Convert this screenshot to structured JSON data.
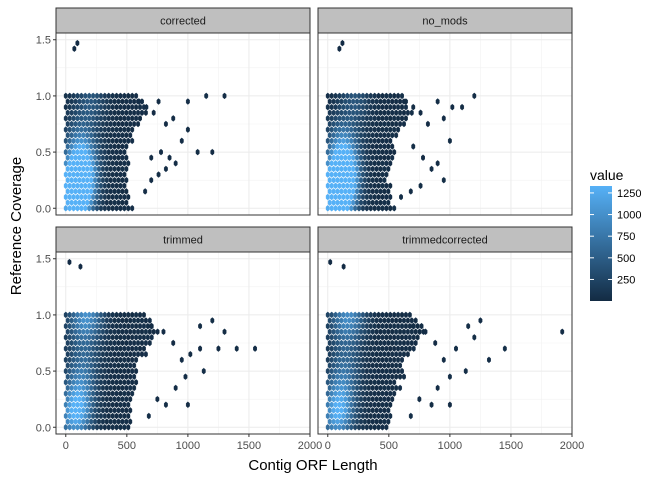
{
  "chart_data": {
    "type": "heatmap",
    "subtype": "hexbin",
    "facet_layout": "2x2",
    "xlabel": "Contig ORF Length",
    "ylabel": "Reference Coverage",
    "xlim": [
      -80,
      2000
    ],
    "ylim": [
      -0.06,
      1.56
    ],
    "x_ticks": [
      0,
      500,
      1000,
      1500,
      2000
    ],
    "y_ticks": [
      0.0,
      0.5,
      1.0,
      1.5
    ],
    "x_tick_labels": [
      "0",
      "500",
      "1000",
      "1500",
      "2000"
    ],
    "y_tick_labels": [
      "0.0",
      "0.5",
      "1.0",
      "1.5"
    ],
    "grid": true,
    "legend": {
      "title": "value",
      "placement": "right",
      "value_range": [
        1,
        1330
      ],
      "breaks": [
        250,
        500,
        750,
        1000,
        1250
      ],
      "break_labels": [
        "250",
        "500",
        "750",
        "1000",
        "1250"
      ],
      "low_color": "#132B43",
      "high_color": "#56B1F7"
    },
    "bin_width": {
      "x": 32,
      "y": 0.05
    },
    "panels": [
      {
        "name": "corrected",
        "outliers": [
          [
            70,
            1.42
          ],
          [
            95,
            1.47
          ]
        ],
        "body": {
          "x_start": 0,
          "x_edge": [
            [
              0.0,
              560
            ],
            [
              0.3,
              520
            ],
            [
              0.6,
              560
            ],
            [
              0.85,
              700
            ],
            [
              1.0,
              640
            ]
          ]
        },
        "tail_cells": [
          [
            600,
            0.95
          ],
          [
            660,
            0.9
          ],
          [
            720,
            0.85
          ],
          [
            760,
            0.95
          ],
          [
            820,
            0.75
          ],
          [
            880,
            0.8
          ],
          [
            950,
            0.6
          ],
          [
            700,
            0.45
          ],
          [
            780,
            0.5
          ],
          [
            850,
            0.45
          ],
          [
            900,
            0.4
          ],
          [
            1000,
            0.7
          ],
          [
            1080,
            0.5
          ],
          [
            1200,
            0.5
          ],
          [
            1300,
            1.0
          ],
          [
            1150,
            1.0
          ],
          [
            1000,
            0.95
          ],
          [
            760,
            0.3
          ],
          [
            820,
            0.35
          ],
          [
            650,
            0.15
          ],
          [
            700,
            0.25
          ]
        ],
        "hot_spots": [
          [
            95,
            0.2,
            1300
          ],
          [
            120,
            0.3,
            900
          ],
          [
            90,
            0.05,
            800
          ],
          [
            140,
            0.45,
            600
          ],
          [
            110,
            0.6,
            450
          ],
          [
            200,
            0.95,
            400
          ],
          [
            60,
            0.1,
            700
          ]
        ]
      },
      {
        "name": "no_mods",
        "outliers": [
          [
            95,
            1.42
          ],
          [
            120,
            1.47
          ]
        ],
        "body": {
          "x_start": 0,
          "x_edge": [
            [
              0.0,
              560
            ],
            [
              0.3,
              540
            ],
            [
              0.6,
              580
            ],
            [
              0.85,
              720
            ],
            [
              1.0,
              660
            ]
          ]
        },
        "tail_cells": [
          [
            640,
            0.95
          ],
          [
            700,
            0.9
          ],
          [
            760,
            0.85
          ],
          [
            820,
            0.75
          ],
          [
            900,
            0.95
          ],
          [
            950,
            0.8
          ],
          [
            700,
            0.55
          ],
          [
            780,
            0.45
          ],
          [
            850,
            0.35
          ],
          [
            900,
            0.4
          ],
          [
            1000,
            0.6
          ],
          [
            1200,
            1.0
          ],
          [
            950,
            0.25
          ],
          [
            1020,
            0.9
          ],
          [
            1100,
            0.9
          ],
          [
            760,
            0.2
          ],
          [
            600,
            0.1
          ],
          [
            680,
            0.15
          ]
        ],
        "hot_spots": [
          [
            100,
            0.2,
            1330
          ],
          [
            120,
            0.3,
            950
          ],
          [
            90,
            0.05,
            850
          ],
          [
            140,
            0.45,
            650
          ],
          [
            110,
            0.6,
            500
          ],
          [
            220,
            0.95,
            380
          ],
          [
            60,
            0.1,
            720
          ]
        ]
      },
      {
        "name": "trimmed",
        "outliers": [
          [
            30,
            1.47
          ],
          [
            120,
            1.43
          ]
        ],
        "body": {
          "x_start": 0,
          "x_edge": [
            [
              0.0,
              520
            ],
            [
              0.3,
              600
            ],
            [
              0.6,
              640
            ],
            [
              0.85,
              800
            ],
            [
              1.0,
              700
            ]
          ]
        },
        "tail_cells": [
          [
            700,
            0.9
          ],
          [
            800,
            0.85
          ],
          [
            880,
            0.75
          ],
          [
            950,
            0.6
          ],
          [
            1020,
            0.65
          ],
          [
            1100,
            0.9
          ],
          [
            1200,
            0.95
          ],
          [
            1300,
            0.85
          ],
          [
            1400,
            0.7
          ],
          [
            1550,
            0.7
          ],
          [
            1100,
            0.7
          ],
          [
            1250,
            0.7
          ],
          [
            900,
            0.35
          ],
          [
            980,
            0.45
          ],
          [
            1130,
            0.5
          ],
          [
            750,
            0.25
          ],
          [
            820,
            0.2
          ],
          [
            680,
            0.1
          ],
          [
            1000,
            0.2
          ]
        ],
        "hot_spots": [
          [
            100,
            0.2,
            700
          ],
          [
            120,
            0.4,
            450
          ],
          [
            80,
            0.05,
            400
          ],
          [
            150,
            0.6,
            350
          ],
          [
            200,
            1.0,
            600
          ],
          [
            120,
            0.95,
            500
          ],
          [
            60,
            0.1,
            380
          ]
        ]
      },
      {
        "name": "trimmedcorrected",
        "outliers": [
          [
            20,
            1.47
          ],
          [
            130,
            1.43
          ]
        ],
        "body": {
          "x_start": 0,
          "x_edge": [
            [
              0.0,
              520
            ],
            [
              0.3,
              600
            ],
            [
              0.6,
              660
            ],
            [
              0.85,
              820
            ],
            [
              1.0,
              700
            ]
          ]
        },
        "tail_cells": [
          [
            700,
            0.9
          ],
          [
            800,
            0.85
          ],
          [
            880,
            0.75
          ],
          [
            950,
            0.6
          ],
          [
            1050,
            0.7
          ],
          [
            1150,
            0.9
          ],
          [
            1250,
            0.95
          ],
          [
            1200,
            0.8
          ],
          [
            1450,
            0.7
          ],
          [
            1920,
            0.85
          ],
          [
            1320,
            0.6
          ],
          [
            900,
            0.35
          ],
          [
            1000,
            0.45
          ],
          [
            1130,
            0.5
          ],
          [
            750,
            0.25
          ],
          [
            850,
            0.2
          ],
          [
            680,
            0.1
          ],
          [
            1000,
            0.2
          ]
        ],
        "hot_spots": [
          [
            100,
            0.2,
            650
          ],
          [
            120,
            0.4,
            420
          ],
          [
            80,
            0.05,
            380
          ],
          [
            150,
            0.6,
            330
          ],
          [
            200,
            1.0,
            560
          ],
          [
            120,
            0.95,
            480
          ],
          [
            60,
            0.1,
            360
          ]
        ]
      }
    ]
  }
}
